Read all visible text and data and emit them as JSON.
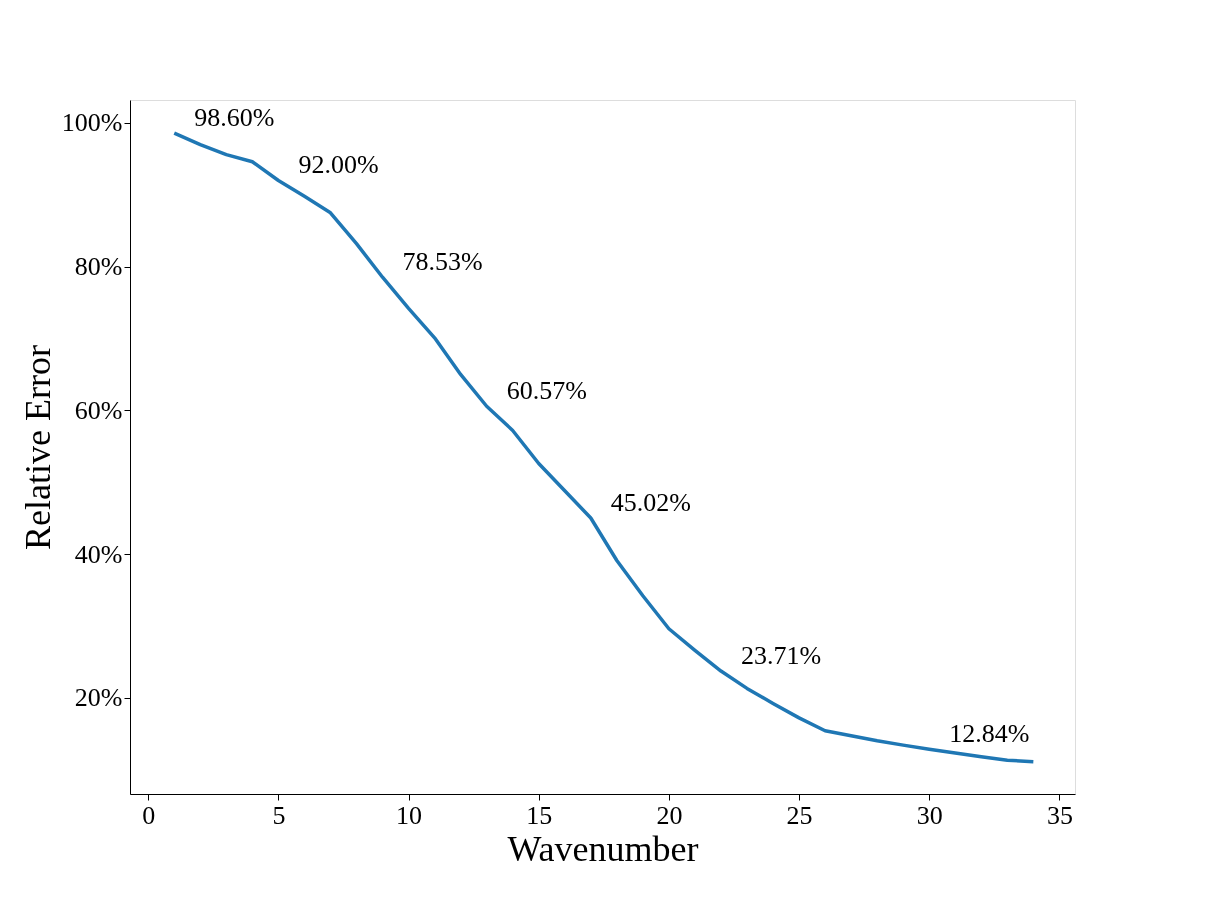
{
  "chart_data": {
    "type": "line",
    "xlabel": "Wavenumber",
    "ylabel": "Relative Error",
    "x": [
      1,
      2,
      3,
      4,
      5,
      6,
      7,
      8,
      9,
      10,
      11,
      12,
      13,
      14,
      15,
      16,
      17,
      18,
      19,
      20,
      21,
      22,
      23,
      24,
      25,
      26,
      27,
      28,
      29,
      30,
      31,
      32,
      33,
      34
    ],
    "series": [
      {
        "color": "#1f77b4",
        "values": [
          98.6,
          97.0,
          95.6,
          94.6,
          92.0,
          89.8,
          87.5,
          83.2,
          78.53,
          74.2,
          70.1,
          65.0,
          60.57,
          57.2,
          52.6,
          48.8,
          45.02,
          39.1,
          34.2,
          29.6,
          26.6,
          23.71,
          21.3,
          19.2,
          17.2,
          15.4,
          14.7,
          14.0,
          13.4,
          12.84,
          12.3,
          11.8,
          11.3,
          11.1
        ]
      }
    ],
    "xlim": [
      -0.7,
      35.6
    ],
    "ylim": [
      6.6,
      103.2
    ],
    "xticks": [
      0,
      5,
      10,
      15,
      20,
      25,
      30,
      35
    ],
    "yticks": [
      {
        "value": 20,
        "label": "20%"
      },
      {
        "value": 40,
        "label": "40%"
      },
      {
        "value": 60,
        "label": "60%"
      },
      {
        "value": 80,
        "label": "80%"
      },
      {
        "value": 100,
        "label": "100%"
      }
    ],
    "annotations": [
      {
        "text": "98.60%",
        "x": 1,
        "y": 98.6
      },
      {
        "text": "92.00%",
        "x": 5,
        "y": 92.0
      },
      {
        "text": "78.53%",
        "x": 9,
        "y": 78.53
      },
      {
        "text": "60.57%",
        "x": 13,
        "y": 60.57
      },
      {
        "text": "45.02%",
        "x": 17,
        "y": 45.02
      },
      {
        "text": "23.71%",
        "x": 22,
        "y": 23.71
      },
      {
        "text": "12.84%",
        "x": 30,
        "y": 12.84
      }
    ],
    "grid": false,
    "marker": "none",
    "line_style": "solid"
  }
}
